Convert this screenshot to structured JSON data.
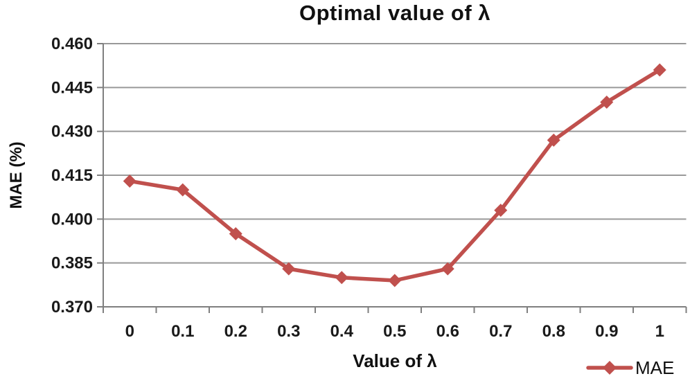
{
  "chart_data": {
    "type": "line",
    "title": "Optimal value of λ",
    "xlabel": "Value of λ",
    "ylabel": "MAE (%)",
    "categories": [
      "0",
      "0.1",
      "0.2",
      "0.3",
      "0.4",
      "0.5",
      "0.6",
      "0.7",
      "0.8",
      "0.9",
      "1"
    ],
    "x_values": [
      0,
      0.1,
      0.2,
      0.3,
      0.4,
      0.5,
      0.6,
      0.7,
      0.8,
      0.9,
      1
    ],
    "series": [
      {
        "name": "MAE",
        "values": [
          0.413,
          0.41,
          0.395,
          0.383,
          0.38,
          0.379,
          0.383,
          0.403,
          0.427,
          0.44,
          0.451
        ]
      }
    ],
    "ylim": [
      0.37,
      0.46
    ],
    "ytick_step": 0.015,
    "ytick_labels": [
      "0.370",
      "0.385",
      "0.400",
      "0.415",
      "0.430",
      "0.445",
      "0.460"
    ],
    "grid": true,
    "marker": "diamond",
    "legend_position": "bottom-right",
    "colors": {
      "series": "#C0504D",
      "gridline": "#999999",
      "axis": "#7F7F7F",
      "text": "#1A1A1A",
      "background": "#FFFFFF"
    }
  }
}
